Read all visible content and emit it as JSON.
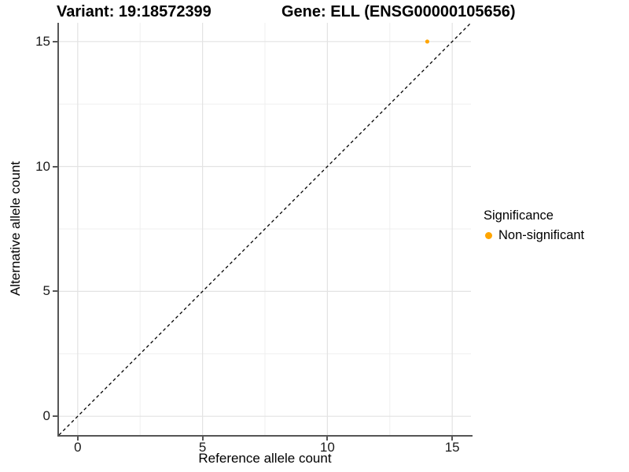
{
  "chart_data": {
    "type": "scatter",
    "title_left": "Variant: 19:18572399",
    "title_right": "Gene: ELL (ENSG00000105656)",
    "xlabel": "Reference allele count",
    "ylabel": "Alternative allele count",
    "x_ticks": [
      0,
      5,
      10,
      15
    ],
    "y_ticks": [
      0,
      5,
      10,
      15
    ],
    "x_minor_ticks": [
      2.5,
      7.5,
      12.5
    ],
    "y_minor_ticks": [
      2.5,
      7.5,
      12.5
    ],
    "x_range": [
      -0.75,
      15.75
    ],
    "y_range": [
      -0.75,
      15.75
    ],
    "grid": {
      "major_color": "#e3e3e3",
      "minor_color": "#efefef"
    },
    "reference_line": {
      "kind": "identity y=x",
      "style": "dashed",
      "color": "#000000"
    },
    "series": [
      {
        "name": "Non-significant",
        "color": "#FFA500",
        "point_radius": 2.6,
        "points": [
          {
            "x": 14,
            "y": 15
          }
        ]
      }
    ],
    "legend_position": "right"
  },
  "legend": {
    "title": "Significance",
    "items": [
      {
        "label": "Non-significant",
        "color": "#FFA500"
      }
    ]
  }
}
